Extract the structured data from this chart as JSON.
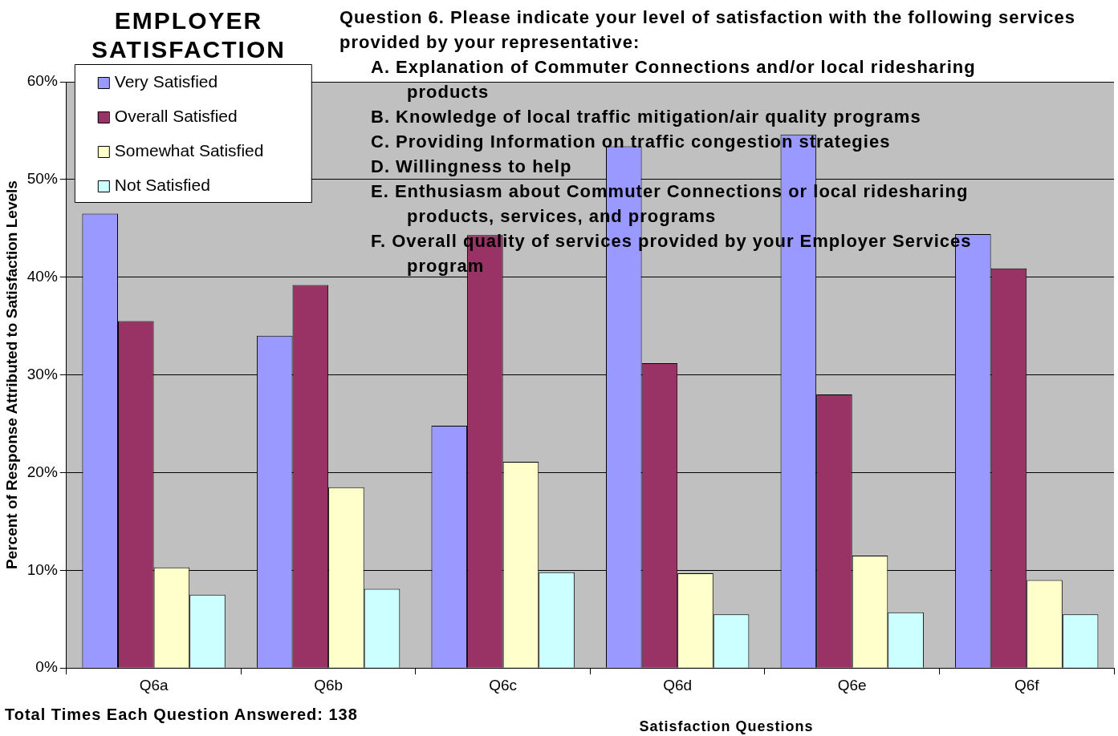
{
  "chart_data": {
    "type": "bar",
    "title": "EMPLOYER SATISFACTION",
    "subtitle": "Question 6.  Please indicate your level of satisfaction with the following services provided by your representative:",
    "annotations": [
      "A.  Explanation of Commuter Connections and/or local ridesharing products",
      "B.  Knowledge of local traffic mitigation/air quality programs",
      "C.  Providing Information on traffic congestion strategies",
      "D.  Willingness to help",
      "E.  Enthusiasm about Commuter Connections or local ridesharing products, services, and programs",
      "F.  Overall quality of services provided by your Employer Services program",
      "Total Times  Each Question   Answered:    138"
    ],
    "xlabel": "Satisfaction Questions",
    "ylabel": "Percent of Response Attributed to Satisfaction Levels",
    "categories": [
      "Q6a",
      "Q6b",
      "Q6c",
      "Q6d",
      "Q6e",
      "Q6f"
    ],
    "series": [
      {
        "name": "Very Satisfied",
        "color": "#9999ff",
        "values": [
          46.5,
          34.0,
          24.8,
          53.4,
          54.6,
          44.4
        ]
      },
      {
        "name": "Overall Satisfied",
        "color": "#993366",
        "values": [
          35.5,
          39.2,
          44.3,
          31.2,
          28.0,
          40.9
        ]
      },
      {
        "name": "Somewhat Satisfied",
        "color": "#ffffcc",
        "values": [
          10.3,
          18.5,
          21.1,
          9.7,
          11.5,
          9.0
        ]
      },
      {
        "name": "Not Satisfied",
        "color": "#ccffff",
        "values": [
          7.5,
          8.1,
          9.8,
          5.5,
          5.7,
          5.5
        ]
      }
    ],
    "ylim": [
      0,
      60
    ],
    "yticks": [
      {
        "value": 0,
        "label": "0%"
      },
      {
        "value": 10,
        "label": "10%"
      },
      {
        "value": 20,
        "label": "20%"
      },
      {
        "value": 30,
        "label": "30%"
      },
      {
        "value": 40,
        "label": "40%"
      },
      {
        "value": 50,
        "label": "50%"
      },
      {
        "value": 60,
        "label": "60%"
      }
    ],
    "grid": "y",
    "legend": "top left"
  }
}
